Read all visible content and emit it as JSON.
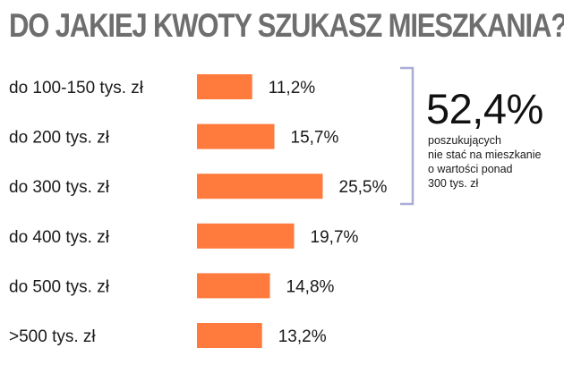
{
  "chart_data": {
    "type": "bar",
    "orientation": "horizontal",
    "title": "DO JAKIEJ KWOTY SZUKASZ MIESZKANIA?",
    "categories": [
      "do 100-150 tys. zł",
      "do 200 tys. zł",
      "do 300 tys. zł",
      "do 400 tys. zł",
      "do 500 tys. zł",
      ">500 tys. zł"
    ],
    "values": [
      11.2,
      15.7,
      25.5,
      19.7,
      14.8,
      13.2
    ],
    "value_labels": [
      "11,2%",
      "15,7%",
      "25,5%",
      "19,7%",
      "14,8%",
      "13,2%"
    ],
    "unit": "%",
    "bar_color": "#ff7a3d",
    "annotation": {
      "value": "52,4%",
      "lines": [
        "poszukujących",
        "nie stać na mieszkanie",
        "o wartości ponad",
        "300 tys. zł"
      ],
      "bracket_color": "#a8aed6",
      "covers_categories": [
        0,
        1,
        2
      ]
    }
  }
}
